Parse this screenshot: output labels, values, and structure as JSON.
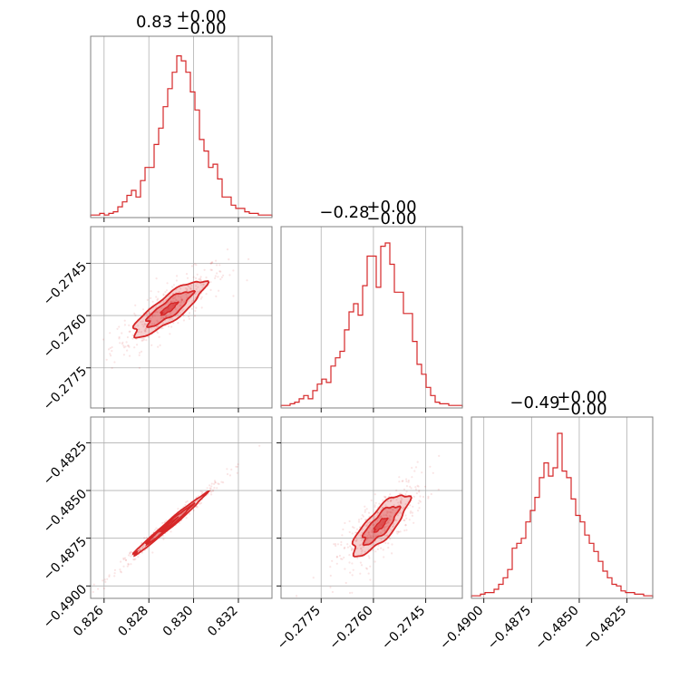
{
  "chart_data": {
    "type": "corner",
    "parameters": [
      {
        "title_main": "0.83",
        "title_sup": "+0.00",
        "title_sub": "−0.00",
        "range": [
          0.8254,
          0.8335
        ],
        "ticks": [
          0.826,
          0.828,
          0.83,
          0.832
        ],
        "tick_labels": [
          "0.826",
          "0.828",
          "0.830",
          "0.832"
        ],
        "median": 0.8289,
        "sigma": 0.0008,
        "hist": [
          0.01,
          0.01,
          0.02,
          0.01,
          0.02,
          0.03,
          0.06,
          0.09,
          0.13,
          0.16,
          0.12,
          0.22,
          0.3,
          0.3,
          0.44,
          0.54,
          0.67,
          0.78,
          0.88,
          0.98,
          0.95,
          0.88,
          0.76,
          0.65,
          0.47,
          0.4,
          0.3,
          0.32,
          0.23,
          0.12,
          0.12,
          0.07,
          0.05,
          0.05,
          0.03,
          0.02,
          0.02,
          0.01,
          0.01,
          0.01
        ]
      },
      {
        "title_main": "−0.28",
        "title_sup": "+0.00",
        "title_sub": "−0.00",
        "range": [
          -0.27865,
          -0.27345
        ],
        "ticks": [
          -0.2775,
          -0.276,
          -0.2745
        ],
        "tick_labels": [
          "−0.2775",
          "−0.2760",
          "−0.2745"
        ],
        "median": -0.2758,
        "sigma": 0.0004,
        "hist": [
          0.01,
          0.01,
          0.02,
          0.03,
          0.05,
          0.07,
          0.05,
          0.1,
          0.14,
          0.17,
          0.15,
          0.25,
          0.3,
          0.34,
          0.47,
          0.58,
          0.63,
          0.56,
          0.74,
          0.92,
          0.92,
          0.73,
          0.98,
          1.0,
          0.87,
          0.7,
          0.7,
          0.57,
          0.57,
          0.4,
          0.26,
          0.2,
          0.12,
          0.07,
          0.03,
          0.02,
          0.02,
          0.01,
          0.01,
          0.01
        ]
      },
      {
        "title_main": "−0.49",
        "title_sup": "+0.00",
        "title_sub": "−0.00",
        "range": [
          -0.49065,
          -0.48115
        ],
        "ticks": [
          -0.49,
          -0.4875,
          -0.485,
          -0.4825
        ],
        "tick_labels": [
          "−0.4900",
          "−0.4875",
          "−0.4850",
          "−0.4825"
        ],
        "median": -0.4868,
        "sigma": 0.0008,
        "hist": [
          0.01,
          0.01,
          0.02,
          0.03,
          0.03,
          0.05,
          0.08,
          0.12,
          0.17,
          0.3,
          0.33,
          0.36,
          0.46,
          0.53,
          0.61,
          0.73,
          0.82,
          0.74,
          0.79,
          1.0,
          0.77,
          0.73,
          0.6,
          0.5,
          0.46,
          0.38,
          0.33,
          0.28,
          0.22,
          0.16,
          0.12,
          0.08,
          0.07,
          0.04,
          0.03,
          0.03,
          0.02,
          0.02,
          0.01,
          0.01
        ]
      }
    ],
    "correlations": [
      [
        1,
        0.85,
        0.99
      ],
      [
        0.85,
        1,
        0.8
      ],
      [
        0.99,
        0.8,
        1
      ]
    ],
    "grid": true
  }
}
